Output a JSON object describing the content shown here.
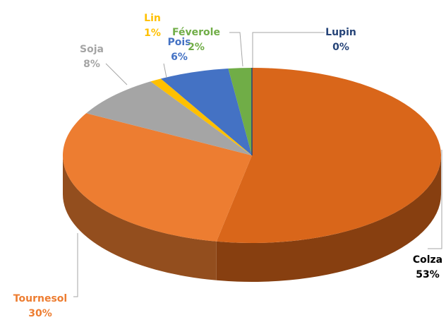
{
  "chart_data": {
    "type": "pie",
    "categories": [
      "Colza",
      "Tournesol",
      "Soja",
      "Lin",
      "Pois",
      "Féverole",
      "Lupin"
    ],
    "values": [
      53,
      30,
      8,
      1,
      6,
      2,
      0
    ],
    "value_labels": [
      "53%",
      "30%",
      "8%",
      "1%",
      "6%",
      "2%",
      "0%"
    ],
    "colors": [
      "#d9661a",
      "#ed7d31",
      "#a5a5a5",
      "#ffc000",
      "#4472c4",
      "#70ad47",
      "#264478"
    ]
  }
}
